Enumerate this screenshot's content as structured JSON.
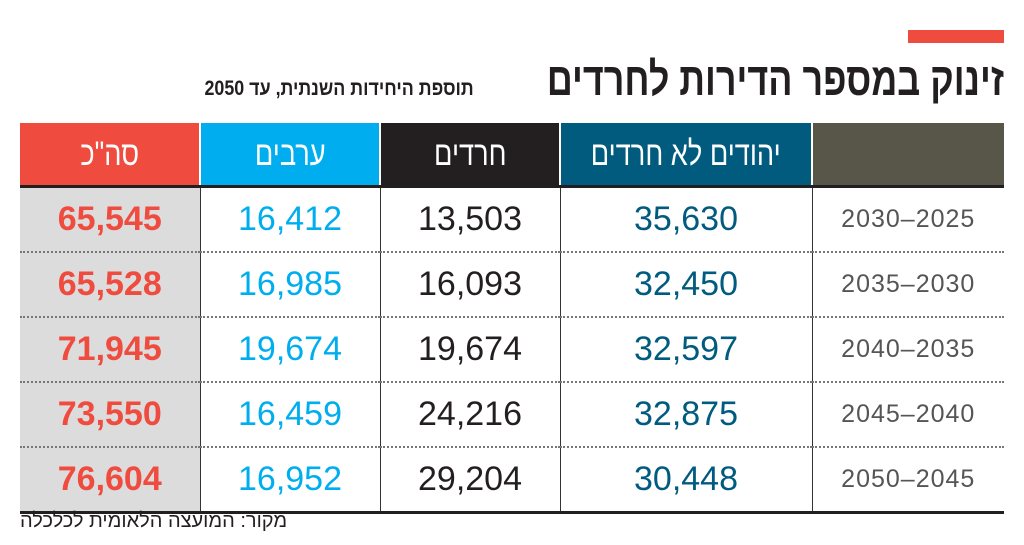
{
  "title": "זינוק במספר הדירות לחרדים",
  "subtitle": "תוספת היחידות השנתית, עד 2050",
  "colors": {
    "accent_bar": "#ef4b3f",
    "total": "#ef4b3f",
    "arabs": "#00aeef",
    "haredim": "#231f20",
    "non_haredi_jews": "#005b7f",
    "period_header": "#585549"
  },
  "chart_data": {
    "type": "table",
    "columns": [
      "",
      "יהודים לא חרדים",
      "חרדים",
      "ערבים",
      "סה\"כ"
    ],
    "rows": [
      {
        "period": "2025–2030",
        "values": [
          "35,630",
          "13,503",
          "16,412",
          "65,545"
        ]
      },
      {
        "period": "2030–2035",
        "values": [
          "32,450",
          "16,093",
          "16,985",
          "65,528"
        ]
      },
      {
        "period": "2035–2040",
        "values": [
          "32,597",
          "19,674",
          "19,674",
          "71,945"
        ]
      },
      {
        "period": "2040–2045",
        "values": [
          "32,875",
          "24,216",
          "16,459",
          "73,550"
        ]
      },
      {
        "period": "2045–2050",
        "values": [
          "30,448",
          "29,204",
          "16,952",
          "76,604"
        ]
      }
    ]
  },
  "source": "מקור: המועצה הלאומית לכלכלה"
}
